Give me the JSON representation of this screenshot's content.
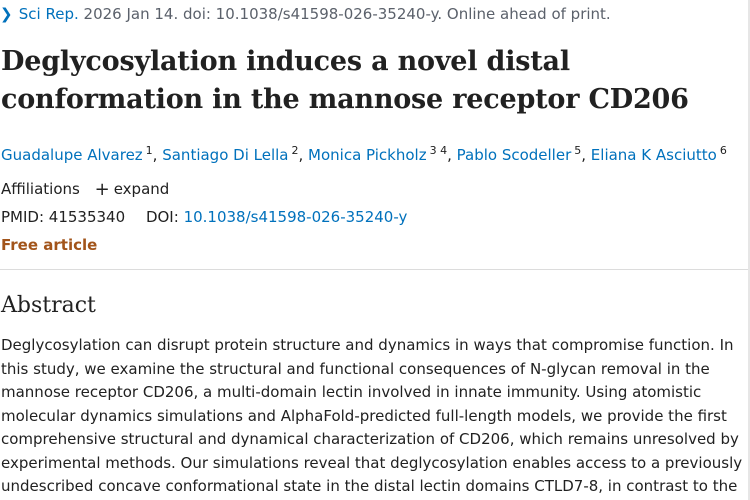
{
  "citation": {
    "chevron_icon": "chevron-right-icon",
    "journal": "Sci Rep.",
    "details": " 2026 Jan 14. doi: 10.1038/s41598-026-35240-y. Online ahead of print."
  },
  "article": {
    "title": "Deglycosylation induces a novel distal conformation in the mannose receptor CD206"
  },
  "authors": [
    {
      "name": "Guadalupe Alvarez",
      "aff": "1"
    },
    {
      "name": "Santiago Di Lella",
      "aff": "2"
    },
    {
      "name": "Monica Pickholz",
      "aff": "3 4"
    },
    {
      "name": "Pablo Scodeller",
      "aff": "5"
    },
    {
      "name": "Eliana K Asciutto",
      "aff": "6"
    }
  ],
  "affiliations": {
    "label": "Affiliations",
    "expand_icon": "plus-icon",
    "expand_label": "expand"
  },
  "ids": {
    "pmid_label": "PMID:",
    "pmid": "41535340",
    "doi_label": "DOI:",
    "doi": "10.1038/s41598-026-35240-y"
  },
  "free_article": "Free article",
  "abstract": {
    "heading": "Abstract",
    "text": "Deglycosylation can disrupt protein structure and dynamics in ways that compromise function. In this study, we examine the structural and functional consequences of N-glycan removal in the mannose receptor CD206, a multi-domain lectin involved in innate immunity. Using atomistic molecular dynamics simulations and AlphaFold-predicted full-length models, we provide the first comprehensive structural and dynamical characterization of CD206, which remains unresolved by experimental methods. Our simulations reveal that deglycosylation enables access to a previously undescribed concave conformational state in the distal lectin domains CTLD7-8, in contrast to the"
  }
}
